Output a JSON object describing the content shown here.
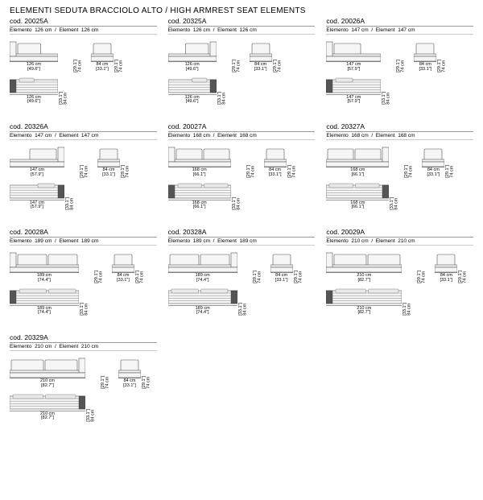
{
  "section_title": "ELEMENTI SEDUTA BRACCIOLO ALTO / HIGH ARMREST SEAT ELEMENTS",
  "module": {
    "width_cm": "84 cm",
    "width_in": "[33.1\"]",
    "height_cm": "74 cm",
    "height_in": "[29.1\"]",
    "plan_h_cm": "84 cm",
    "plan_h_in": "[33.1\"]"
  },
  "items": [
    {
      "code": "cod. 20025A",
      "elem_cm": "126 cm",
      "w_cm": "126 cm",
      "w_in": "[49.6\"]",
      "cushions": 1,
      "armrest": "left"
    },
    {
      "code": "cod. 20325A",
      "elem_cm": "126 cm",
      "w_cm": "126 cm",
      "w_in": "[49.6\"]",
      "cushions": 1,
      "armrest": "right"
    },
    {
      "code": "cod. 20026A",
      "elem_cm": "147 cm",
      "w_cm": "147 cm",
      "w_in": "[57.9\"]",
      "cushions": 1,
      "armrest": "left"
    },
    {
      "code": "cod. 20326A",
      "elem_cm": "147 cm",
      "w_cm": "147 cm",
      "w_in": "[57.9\"]",
      "cushions": 1,
      "armrest": "right"
    },
    {
      "code": "cod. 20027A",
      "elem_cm": "168 cm",
      "w_cm": "168 cm",
      "w_in": "[66.1\"]",
      "cushions": 2,
      "armrest": "left"
    },
    {
      "code": "cod. 20327A",
      "elem_cm": "168 cm",
      "w_cm": "168 cm",
      "w_in": "[66.1\"]",
      "cushions": 2,
      "armrest": "right"
    },
    {
      "code": "cod. 20028A",
      "elem_cm": "189 cm",
      "w_cm": "189 cm",
      "w_in": "[74.4\"]",
      "cushions": 2,
      "armrest": "left"
    },
    {
      "code": "cod. 20328A",
      "elem_cm": "189 cm",
      "w_cm": "189 cm",
      "w_in": "[74.4\"]",
      "cushions": 2,
      "armrest": "right"
    },
    {
      "code": "cod. 20029A",
      "elem_cm": "210 cm",
      "w_cm": "210 cm",
      "w_in": "[82.7\"]",
      "cushions": 2,
      "armrest": "left"
    },
    {
      "code": "cod. 20329A",
      "elem_cm": "210 cm",
      "w_cm": "210 cm",
      "w_in": "[82.7\"]",
      "cushions": 2,
      "armrest": "right"
    }
  ]
}
